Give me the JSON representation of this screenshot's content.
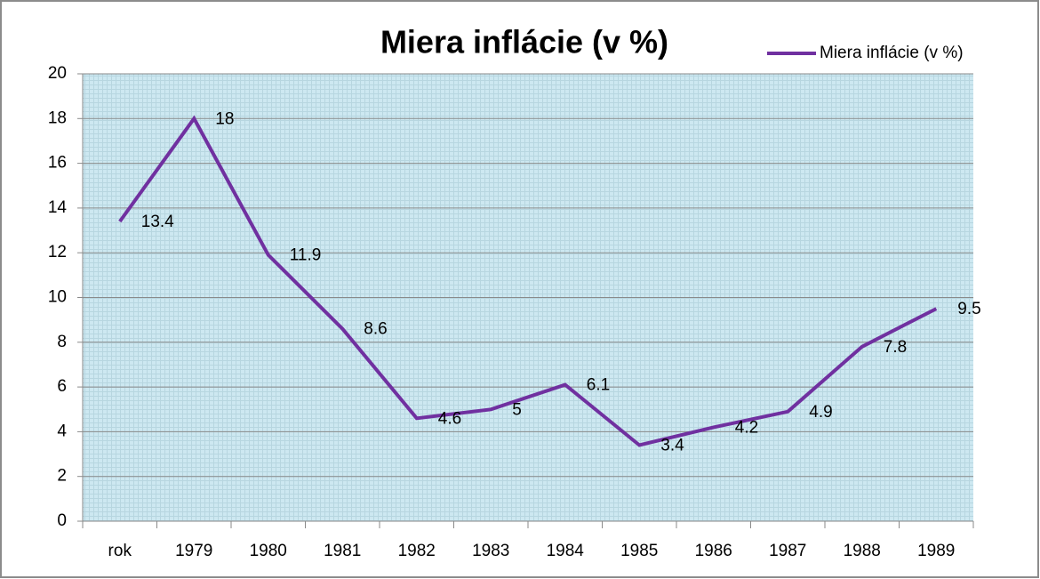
{
  "chart_data": {
    "type": "line",
    "title": "Miera inflácie (v %)",
    "categories": [
      "rok",
      "1979",
      "1980",
      "1981",
      "1982",
      "1983",
      "1984",
      "1985",
      "1986",
      "1987",
      "1988",
      "1989"
    ],
    "series": [
      {
        "name": "Miera inflácie (v %)",
        "color": "#7030a0",
        "values": [
          13.4,
          18,
          11.9,
          8.6,
          4.6,
          5,
          6.1,
          3.4,
          4.2,
          4.9,
          7.8,
          9.5
        ]
      }
    ],
    "ylim": [
      0,
      20
    ],
    "yticks": [
      0,
      2,
      4,
      6,
      8,
      10,
      12,
      14,
      16,
      18,
      20
    ],
    "grid": true,
    "legend": "top-right"
  }
}
